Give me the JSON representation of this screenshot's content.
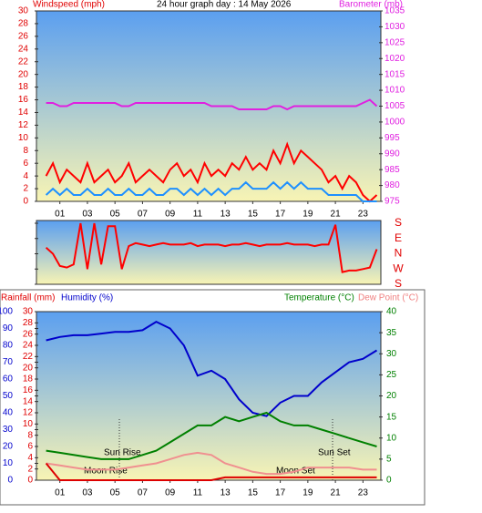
{
  "chart_data": [
    {
      "type": "line",
      "title": "24 hour graph day : 14 May 2026",
      "y_label": "Windspeed (mph)",
      "y2_label": "Barometer (mb)",
      "x": [
        0,
        0.5,
        1,
        1.5,
        2,
        2.5,
        3,
        3.5,
        4,
        4.5,
        5,
        5.5,
        6,
        6.5,
        7,
        7.5,
        8,
        8.5,
        9,
        9.5,
        10,
        10.5,
        11,
        11.5,
        12,
        12.5,
        13,
        13.5,
        14,
        14.5,
        15,
        15.5,
        16,
        16.5,
        17,
        17.5,
        18,
        18.5,
        19,
        19.5,
        20,
        20.5,
        21,
        21.5,
        22,
        22.5,
        23,
        23.5,
        24
      ],
      "xlim": [
        -0.7,
        24.3
      ],
      "xticks": [
        {
          "value": 1,
          "label": "01"
        },
        {
          "value": 3,
          "label": "03"
        },
        {
          "value": 5,
          "label": "05"
        },
        {
          "value": 7,
          "label": "07"
        },
        {
          "value": 9,
          "label": "09"
        },
        {
          "value": 11,
          "label": "11"
        },
        {
          "value": 13,
          "label": "13"
        },
        {
          "value": 15,
          "label": "15"
        },
        {
          "value": 17,
          "label": "17"
        },
        {
          "value": 19,
          "label": "19"
        },
        {
          "value": 21,
          "label": "21"
        },
        {
          "value": 23,
          "label": "23"
        }
      ],
      "ylim": [
        0,
        30
      ],
      "yticks": [
        0,
        2,
        4,
        6,
        8,
        10,
        12,
        14,
        16,
        18,
        20,
        22,
        24,
        26,
        28,
        30
      ],
      "y2lim": [
        975,
        1035
      ],
      "y2ticks": [
        975,
        980,
        985,
        990,
        995,
        1000,
        1005,
        1010,
        1015,
        1020,
        1025,
        1030,
        1035
      ],
      "series": [
        {
          "color": "#ff0000",
          "values": [
            4,
            6,
            3,
            5,
            4,
            3,
            6,
            3,
            4,
            5,
            3,
            4,
            6,
            3,
            4,
            5,
            4,
            3,
            5,
            6,
            4,
            5,
            3,
            6,
            4,
            5,
            4,
            6,
            5,
            7,
            5,
            6,
            5,
            8,
            6,
            9,
            6,
            8,
            7,
            6,
            5,
            3,
            4,
            2,
            4,
            3,
            1,
            0,
            1
          ]
        },
        {
          "color": "#1e90ff",
          "values": [
            1,
            2,
            1,
            2,
            1,
            1,
            2,
            1,
            1,
            2,
            1,
            1,
            2,
            1,
            1,
            2,
            1,
            1,
            2,
            2,
            1,
            2,
            1,
            2,
            1,
            2,
            1,
            2,
            2,
            3,
            2,
            2,
            2,
            3,
            2,
            3,
            2,
            3,
            2,
            2,
            2,
            1,
            1,
            1,
            1,
            1,
            0,
            0,
            0
          ]
        },
        {
          "color": "#e020e0",
          "axis": "y2",
          "values": [
            1006,
            1006,
            1005,
            1005,
            1006,
            1006,
            1006,
            1006,
            1006,
            1006,
            1006,
            1005,
            1005,
            1006,
            1006,
            1006,
            1006,
            1006,
            1006,
            1006,
            1006,
            1006,
            1006,
            1006,
            1005,
            1005,
            1005,
            1005,
            1004,
            1004,
            1004,
            1004,
            1004,
            1005,
            1005,
            1004,
            1005,
            1005,
            1005,
            1005,
            1005,
            1005,
            1005,
            1005,
            1005,
            1005,
            1006,
            1007,
            1005
          ]
        }
      ]
    },
    {
      "type": "line",
      "x": [
        0,
        0.5,
        1,
        1.5,
        2,
        2.5,
        3,
        3.5,
        4,
        4.5,
        5,
        5.5,
        6,
        6.5,
        7,
        7.5,
        8,
        8.5,
        9,
        9.5,
        10,
        10.5,
        11,
        11.5,
        12,
        12.5,
        13,
        13.5,
        14,
        14.5,
        15,
        15.5,
        16,
        16.5,
        17,
        17.5,
        18,
        18.5,
        19,
        19.5,
        20,
        20.5,
        21,
        21.5,
        22,
        22.5,
        23,
        23.5,
        24
      ],
      "xlim": [
        -0.7,
        24.3
      ],
      "ylim": [
        0,
        4
      ],
      "yticks": [
        {
          "value": 4,
          "label": "S"
        },
        {
          "value": 3,
          "label": "E"
        },
        {
          "value": 2,
          "label": "N"
        },
        {
          "value": 1,
          "label": "W"
        },
        {
          "value": 0,
          "label": "S"
        }
      ],
      "series": [
        {
          "color": "#ff0000",
          "values": [
            2.4,
            2,
            1.2,
            1.1,
            1.3,
            4,
            1,
            4,
            1.3,
            3.8,
            3.8,
            1,
            2.5,
            2.7,
            2.6,
            2.5,
            2.6,
            2.7,
            2.6,
            2.6,
            2.6,
            2.7,
            2.5,
            2.6,
            2.6,
            2.6,
            2.5,
            2.6,
            2.6,
            2.7,
            2.6,
            2.5,
            2.6,
            2.6,
            2.6,
            2.7,
            2.6,
            2.6,
            2.6,
            2.5,
            2.6,
            2.6,
            3.9,
            0.8,
            0.9,
            0.9,
            1,
            1.1,
            2.3
          ]
        }
      ]
    },
    {
      "type": "line",
      "y_label": "Humidity (%)",
      "y3_label": "Rainfall (mm)",
      "y2_label": "Temperature (°C)",
      "y2b_label": "Dew Point (°C)",
      "annotations": [
        "Sun Rise",
        "Moon Rise",
        "Sun Set",
        "Moon Set"
      ],
      "x": [
        0,
        1,
        2,
        3,
        4,
        5,
        6,
        7,
        8,
        9,
        10,
        11,
        12,
        13,
        14,
        15,
        16,
        17,
        18,
        19,
        20,
        21,
        22,
        23,
        24
      ],
      "xlim": [
        -0.7,
        24.3
      ],
      "xticks": [
        {
          "value": 1,
          "label": "01"
        },
        {
          "value": 3,
          "label": "03"
        },
        {
          "value": 5,
          "label": "05"
        },
        {
          "value": 7,
          "label": "07"
        },
        {
          "value": 9,
          "label": "09"
        },
        {
          "value": 11,
          "label": "11"
        },
        {
          "value": 13,
          "label": "13"
        },
        {
          "value": 15,
          "label": "15"
        },
        {
          "value": 17,
          "label": "17"
        },
        {
          "value": 19,
          "label": "19"
        },
        {
          "value": 21,
          "label": "21"
        },
        {
          "value": 23,
          "label": "23"
        }
      ],
      "ylim": [
        0,
        100
      ],
      "yticks": [
        0,
        10,
        20,
        30,
        40,
        50,
        60,
        70,
        80,
        90,
        100
      ],
      "y2lim": [
        0,
        40
      ],
      "y2ticks": [
        0,
        5,
        10,
        15,
        20,
        25,
        30,
        35,
        40
      ],
      "y3lim": [
        0,
        30
      ],
      "y3ticks": [
        0,
        2,
        4,
        6,
        8,
        10,
        12,
        14,
        16,
        18,
        20,
        22,
        24,
        26,
        28,
        30
      ],
      "series": [
        {
          "color": "#0000cc",
          "values": [
            83,
            85,
            86,
            86,
            87,
            88,
            88,
            89,
            94,
            90,
            80,
            62,
            65,
            60,
            48,
            40,
            38,
            46,
            50,
            50,
            58,
            64,
            70,
            72,
            77
          ]
        },
        {
          "color": "#008000",
          "axis": "y2",
          "values": [
            7,
            6.5,
            6,
            5.5,
            5,
            5,
            5,
            6,
            7,
            9,
            11,
            13,
            13,
            15,
            14,
            15,
            16,
            14,
            13,
            13,
            12,
            11,
            10,
            9,
            8
          ]
        },
        {
          "color": "#f09090",
          "axis": "y2",
          "values": [
            4,
            3.5,
            3,
            2.5,
            2.5,
            2.5,
            3,
            3.5,
            4,
            5,
            6,
            6.5,
            6,
            4,
            3,
            2,
            1.5,
            1.5,
            2,
            3,
            3,
            3,
            3,
            2.5,
            2.5
          ]
        },
        {
          "color": "#dd0000",
          "axis": "y3",
          "values": [
            3,
            0,
            0,
            0,
            0,
            0,
            0,
            0,
            0,
            0,
            0,
            0,
            0,
            0.5,
            0.5,
            0.5,
            0.5,
            0.5,
            0.5,
            0.5,
            0.5,
            0.5,
            0.5,
            0.5,
            0.5
          ]
        }
      ]
    }
  ]
}
